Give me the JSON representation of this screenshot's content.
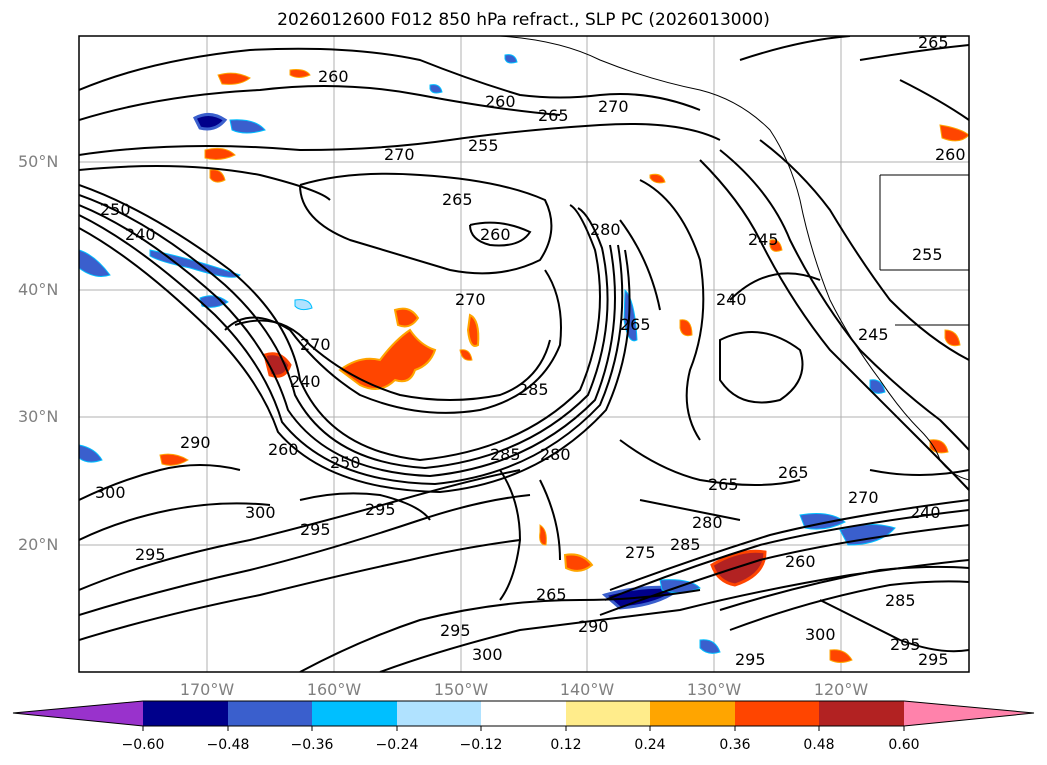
{
  "title": "2026012600 F012 850 hPa refract., SLP PC (2026013000)",
  "lat_labels": [
    "50°N",
    "40°N",
    "30°N",
    "20°N"
  ],
  "lon_labels": [
    "170°W",
    "160°W",
    "150°W",
    "140°W",
    "130°W",
    "120°W"
  ],
  "colorbar": {
    "ticks": [
      "−0.60",
      "−0.48",
      "−0.36",
      "−0.24",
      "−0.12",
      "0.12",
      "0.24",
      "0.36",
      "0.48",
      "0.60"
    ],
    "colors": [
      "#9932cc",
      "#00008b",
      "#3a5fcd",
      "#00bfff",
      "#b0e2ff",
      "#ffffff",
      "#ffec8b",
      "#ffa500",
      "#ff4500",
      "#b22222",
      "#ff82ab"
    ]
  },
  "contour_labels": [
    "265",
    "260",
    "265",
    "270",
    "260",
    "255",
    "270",
    "265",
    "260",
    "280",
    "245",
    "250",
    "240",
    "255",
    "260",
    "270",
    "240",
    "245",
    "270",
    "240",
    "285",
    "265",
    "285",
    "280",
    "290",
    "250",
    "260",
    "265",
    "270",
    "295",
    "300",
    "295",
    "240",
    "295",
    "300",
    "290",
    "265",
    "300",
    "295",
    "285",
    "295",
    "275",
    "280",
    "265",
    "260",
    "295",
    "285",
    "300",
    "295"
  ]
}
